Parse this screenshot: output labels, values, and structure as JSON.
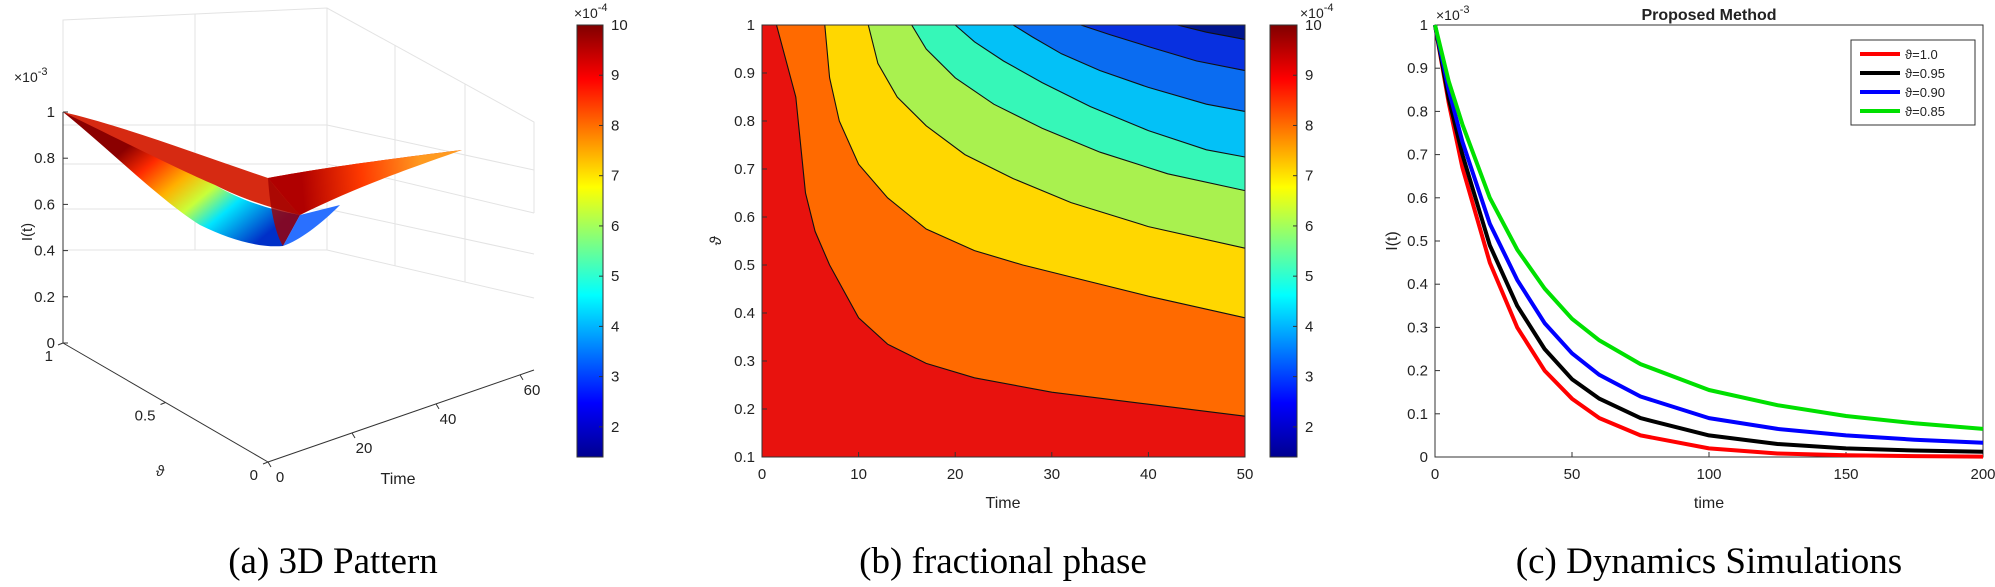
{
  "captions": {
    "a": "(a) 3D Pattern",
    "b": "(b) fractional phase",
    "c": "(c) Dynamics Simulations"
  },
  "chart_data": [
    {
      "type": "surface",
      "title": "",
      "zlabel": "I(t)",
      "zexp": "×10",
      "zexp_power": "-3",
      "xlabel": "Time",
      "ylabel": "ϑ",
      "x_ticks": [
        "0",
        "20",
        "40",
        "60"
      ],
      "y_ticks": [
        "0",
        "0.5",
        "1"
      ],
      "z_ticks": [
        "0",
        "0.2",
        "0.4",
        "0.6",
        "0.8",
        "1"
      ],
      "xlim": [
        0,
        60
      ],
      "ylim": [
        0,
        1
      ],
      "zlim": [
        0,
        1
      ],
      "surface_corners": [
        {
          "time": 0,
          "theta": 1,
          "I": 1.0
        },
        {
          "time": 60,
          "theta": 1,
          "I": 0.45
        },
        {
          "time": 60,
          "theta": 0,
          "I": 0.35
        },
        {
          "time": 0,
          "theta": 0,
          "I": 1.0
        }
      ],
      "colorbar": {
        "ticks": [
          "2",
          "3",
          "4",
          "5",
          "6",
          "7",
          "8",
          "9",
          "10"
        ],
        "exp": "×10",
        "exp_power": "-4",
        "range": [
          1.4,
          10
        ],
        "colormap": "jet"
      }
    },
    {
      "type": "heatmap",
      "subtype": "filled-contour",
      "xlabel": "Time",
      "ylabel": "ϑ",
      "xlim": [
        0,
        50
      ],
      "ylim": [
        0.1,
        1
      ],
      "x_ticks": [
        "0",
        "10",
        "20",
        "30",
        "40",
        "50"
      ],
      "y_ticks": [
        "0.1",
        "0.2",
        "0.3",
        "0.4",
        "0.5",
        "0.6",
        "0.7",
        "0.8",
        "0.9",
        "1"
      ],
      "contour_levels": [
        9,
        8,
        7,
        6,
        5,
        4,
        3,
        2
      ],
      "level_colors": [
        "#e8120e",
        "#ff6a00",
        "#ffd700",
        "#a9f14f",
        "#36f7b8",
        "#03c1f7",
        "#0a6cf1",
        "#0830e0",
        "#00158e"
      ],
      "contours": [
        {
          "level": 9,
          "points": [
            [
              1.5,
              1.0
            ],
            [
              3.5,
              0.85
            ],
            [
              4.5,
              0.65
            ],
            [
              5.5,
              0.57
            ],
            [
              7,
              0.5
            ],
            [
              10,
              0.39
            ],
            [
              13,
              0.335
            ],
            [
              17,
              0.295
            ],
            [
              22,
              0.265
            ],
            [
              30,
              0.235
            ],
            [
              40,
              0.21
            ],
            [
              50,
              0.185
            ]
          ]
        },
        {
          "level": 8,
          "points": [
            [
              6.5,
              1.0
            ],
            [
              7,
              0.89
            ],
            [
              8,
              0.8
            ],
            [
              10,
              0.71
            ],
            [
              13,
              0.64
            ],
            [
              17,
              0.575
            ],
            [
              22,
              0.53
            ],
            [
              27,
              0.5
            ],
            [
              28,
              0.495
            ],
            [
              32,
              0.475
            ],
            [
              40,
              0.435
            ],
            [
              50,
              0.39
            ]
          ]
        },
        {
          "level": 7,
          "points": [
            [
              11,
              1.0
            ],
            [
              12,
              0.92
            ],
            [
              14,
              0.85
            ],
            [
              17,
              0.79
            ],
            [
              21,
              0.73
            ],
            [
              26,
              0.68
            ],
            [
              32,
              0.63
            ],
            [
              40,
              0.58
            ],
            [
              50,
              0.535
            ]
          ]
        },
        {
          "level": 6,
          "points": [
            [
              15.5,
              1.0
            ],
            [
              17,
              0.95
            ],
            [
              20,
              0.89
            ],
            [
              24,
              0.835
            ],
            [
              29,
              0.785
            ],
            [
              35,
              0.735
            ],
            [
              42,
              0.69
            ],
            [
              50,
              0.655
            ]
          ]
        },
        {
          "level": 5,
          "points": [
            [
              20,
              1.0
            ],
            [
              22,
              0.965
            ],
            [
              25,
              0.925
            ],
            [
              29,
              0.88
            ],
            [
              34,
              0.83
            ],
            [
              40,
              0.78
            ],
            [
              46,
              0.74
            ],
            [
              50,
              0.725
            ]
          ]
        },
        {
          "level": 4,
          "points": [
            [
              26,
              1.0
            ],
            [
              28,
              0.975
            ],
            [
              31,
              0.94
            ],
            [
              35,
              0.905
            ],
            [
              40,
              0.87
            ],
            [
              46,
              0.835
            ],
            [
              50,
              0.82
            ]
          ]
        },
        {
          "level": 3,
          "points": [
            [
              33,
              1.0
            ],
            [
              36,
              0.98
            ],
            [
              40,
              0.955
            ],
            [
              45,
              0.925
            ],
            [
              50,
              0.905
            ]
          ]
        },
        {
          "level": 2,
          "points": [
            [
              43,
              1.0
            ],
            [
              46,
              0.985
            ],
            [
              50,
              0.97
            ]
          ]
        }
      ],
      "colorbar": {
        "ticks": [
          "2",
          "3",
          "4",
          "5",
          "6",
          "7",
          "8",
          "9",
          "10"
        ],
        "exp": "×10",
        "exp_power": "-4",
        "range": [
          1.4,
          10
        ],
        "colormap": "jet"
      }
    },
    {
      "type": "line",
      "title": "Proposed Method",
      "xlabel": "time",
      "ylabel": "I(t)",
      "yexp": "×10",
      "yexp_power": "-3",
      "xlim": [
        0,
        200
      ],
      "ylim": [
        0,
        1
      ],
      "x_ticks": [
        "0",
        "50",
        "100",
        "150",
        "200"
      ],
      "y_ticks": [
        "0",
        "0.1",
        "0.2",
        "0.3",
        "0.4",
        "0.5",
        "0.6",
        "0.7",
        "0.8",
        "0.9",
        "1"
      ],
      "legend_position": "top-right",
      "series": [
        {
          "name": "ϑ=1.0",
          "color": "#ff0000",
          "x": [
            0,
            5,
            10,
            20,
            30,
            40,
            50,
            60,
            75,
            100,
            125,
            150,
            175,
            200
          ],
          "values": [
            1.0,
            0.82,
            0.67,
            0.45,
            0.3,
            0.2,
            0.135,
            0.09,
            0.05,
            0.02,
            0.008,
            0.004,
            0.002,
            0.001
          ]
        },
        {
          "name": "ϑ=0.95",
          "color": "#000000",
          "x": [
            0,
            5,
            10,
            20,
            30,
            40,
            50,
            60,
            75,
            100,
            125,
            150,
            175,
            200
          ],
          "values": [
            1.0,
            0.83,
            0.7,
            0.49,
            0.35,
            0.25,
            0.18,
            0.135,
            0.09,
            0.05,
            0.03,
            0.02,
            0.015,
            0.012
          ]
        },
        {
          "name": "ϑ=0.90",
          "color": "#0000ff",
          "x": [
            0,
            5,
            10,
            20,
            30,
            40,
            50,
            60,
            75,
            100,
            125,
            150,
            175,
            200
          ],
          "values": [
            1.0,
            0.85,
            0.73,
            0.54,
            0.41,
            0.31,
            0.24,
            0.19,
            0.14,
            0.09,
            0.065,
            0.05,
            0.04,
            0.033
          ]
        },
        {
          "name": "ϑ=0.85",
          "color": "#00e000",
          "x": [
            0,
            5,
            10,
            20,
            30,
            40,
            50,
            60,
            75,
            100,
            125,
            150,
            175,
            200
          ],
          "values": [
            1.0,
            0.87,
            0.77,
            0.6,
            0.48,
            0.39,
            0.32,
            0.27,
            0.215,
            0.155,
            0.12,
            0.095,
            0.078,
            0.065
          ]
        }
      ]
    }
  ]
}
